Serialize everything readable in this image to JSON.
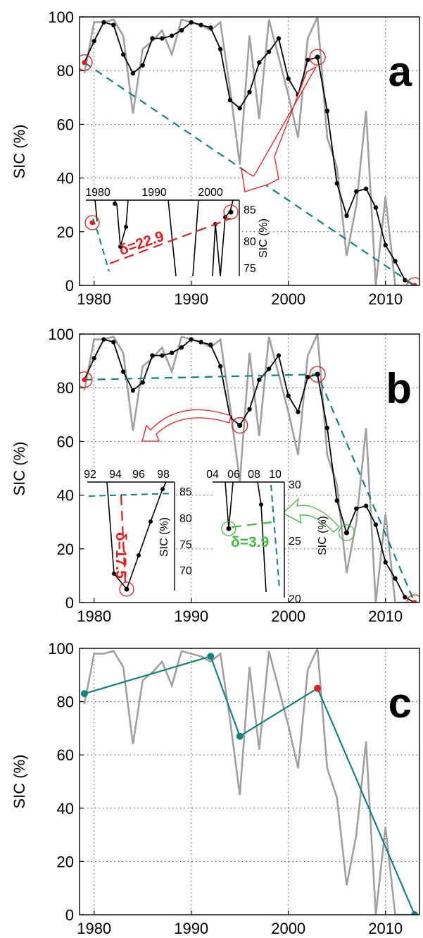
{
  "chart_data": [
    {
      "panel": "a",
      "type": "line",
      "ylabel": "SIC (%)",
      "xlim": [
        1978.5,
        2013.5
      ],
      "ylim": [
        0,
        100
      ],
      "xticks": [
        1980,
        1990,
        2000,
        2010
      ],
      "yticks": [
        0,
        20,
        40,
        60,
        80,
        100
      ],
      "grid": true,
      "series": [
        {
          "role": "raw",
          "color": "#a0a0a0",
          "x": [
            1979,
            1980,
            1981,
            1982,
            1983,
            1984,
            1985,
            1986,
            1987,
            1988,
            1989,
            1990,
            1991,
            1992,
            1993,
            1994,
            1995,
            1996,
            1997,
            1998,
            1999,
            2000,
            2001,
            2002,
            2003,
            2004,
            2005,
            2006,
            2007,
            2008,
            2009,
            2010,
            2011,
            2012,
            2013
          ],
          "values": [
            79,
            98,
            98,
            99,
            93,
            64,
            88,
            91,
            95,
            86,
            99,
            98,
            97,
            95,
            98,
            73,
            45,
            93,
            62,
            99,
            85,
            71,
            55,
            92,
            100,
            55,
            44,
            11,
            30,
            65,
            0,
            33,
            0,
            0,
            0
          ]
        },
        {
          "role": "smoothed",
          "color": "#000000",
          "x": [
            1979,
            1980,
            1981,
            1982,
            1983,
            1984,
            1985,
            1986,
            1987,
            1988,
            1989,
            1990,
            1991,
            1992,
            1993,
            1994,
            1995,
            1996,
            1997,
            1998,
            1999,
            2000,
            2001,
            2002,
            2003,
            2004,
            2005,
            2006,
            2007,
            2008,
            2009,
            2010,
            2011,
            2012,
            2013
          ],
          "values": [
            83,
            91,
            98,
            97,
            86,
            79,
            82,
            92,
            92,
            93,
            95,
            98,
            97,
            96,
            88,
            69,
            66,
            72,
            83,
            87,
            92,
            77,
            71,
            84,
            85,
            65,
            38,
            26,
            35,
            36,
            29,
            15,
            9,
            2,
            0
          ]
        }
      ],
      "fit": {
        "color": "#158080",
        "x": [
          1979,
          2013
        ],
        "values": [
          83,
          0
        ]
      },
      "highlights": [
        {
          "x": 1979,
          "y": 83
        },
        {
          "x": 2003,
          "y": 85
        },
        {
          "x": 2013,
          "y": 0
        }
      ],
      "insets": [
        {
          "xticks": [
            "1980",
            "1990",
            "2000"
          ],
          "yticks": [
            "75",
            "80",
            "85"
          ],
          "ylabel": "SIC (%)",
          "delta_label": "δ=22.9",
          "delta_color": "#e02020"
        }
      ]
    },
    {
      "panel": "b",
      "type": "line",
      "ylabel": "SIC (%)",
      "xlim": [
        1978.5,
        2013.5
      ],
      "ylim": [
        0,
        100
      ],
      "xticks": [
        1980,
        1990,
        2000,
        2010
      ],
      "yticks": [
        0,
        20,
        40,
        60,
        80,
        100
      ],
      "grid": true,
      "fit": {
        "color": "#158080",
        "x": [
          1979,
          2003,
          2013
        ],
        "values": [
          83,
          85,
          0
        ]
      },
      "highlights": [
        {
          "x": 1979,
          "y": 83
        },
        {
          "x": 1995,
          "y": 66
        },
        {
          "x": 2003,
          "y": 85
        },
        {
          "x": 2006,
          "y": 26
        },
        {
          "x": 2013,
          "y": 0
        }
      ],
      "insets": [
        {
          "xticks": [
            "92",
            "94",
            "96",
            "98"
          ],
          "yticks": [
            "70",
            "75",
            "80",
            "85"
          ],
          "ylabel": "SIC (%)",
          "delta_label": "δ=17.5",
          "delta_color": "#e02020"
        },
        {
          "xticks": [
            "04",
            "06",
            "08",
            "10"
          ],
          "yticks": [
            "20",
            "25",
            "30"
          ],
          "ylabel": "SIC (%)",
          "delta_label": "δ=3.9",
          "delta_color": "#44b844"
        }
      ]
    },
    {
      "panel": "c",
      "type": "line",
      "ylabel": "SIC (%)",
      "xlim": [
        1978.5,
        2013.5
      ],
      "ylim": [
        0,
        100
      ],
      "xticks": [
        1980,
        1990,
        2000,
        2010
      ],
      "yticks": [
        0,
        20,
        40,
        60,
        80,
        100
      ],
      "grid": true,
      "fit": {
        "color": "#158080",
        "x": [
          1979,
          1992,
          1995,
          2003,
          2013
        ],
        "values": [
          83,
          97,
          67,
          85,
          0
        ]
      },
      "highlights": [
        {
          "x": 2003,
          "y": 85,
          "color": "#e02020"
        }
      ]
    }
  ]
}
